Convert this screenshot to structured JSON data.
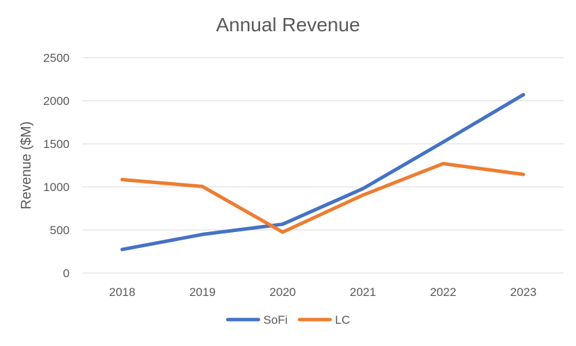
{
  "chart_data": {
    "type": "line",
    "title": "Annual Revenue",
    "xlabel": "",
    "ylabel": "Revenue ($M)",
    "categories": [
      "2018",
      "2019",
      "2020",
      "2021",
      "2022",
      "2023"
    ],
    "ylim": [
      0,
      2500
    ],
    "yticks": [
      0,
      500,
      1000,
      1500,
      2000,
      2500
    ],
    "grid": true,
    "legend_position": "bottom",
    "series": [
      {
        "name": "SoFi",
        "color": "#4472c4",
        "values": [
          273,
          448,
          567,
          980,
          1520,
          2070
        ]
      },
      {
        "name": "LC",
        "color": "#ed7d31",
        "values": [
          1085,
          1005,
          475,
          905,
          1270,
          1145
        ]
      }
    ]
  }
}
